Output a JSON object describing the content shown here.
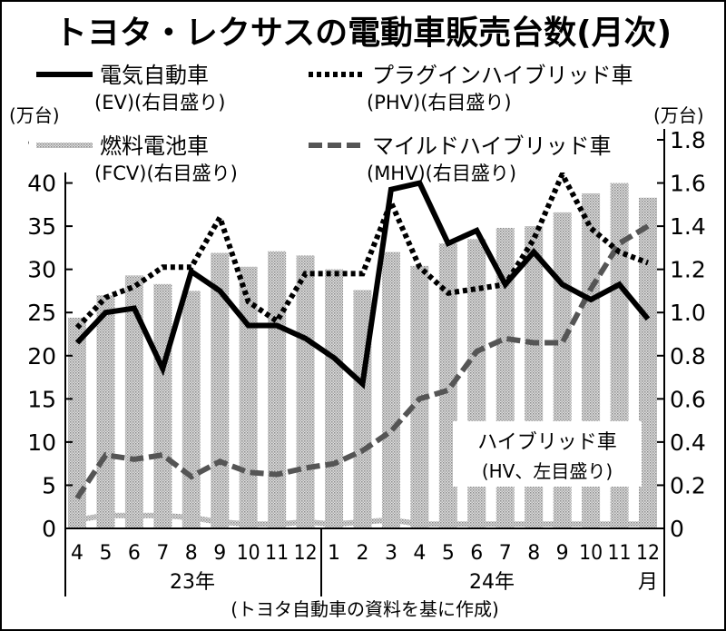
{
  "chart_data": {
    "type": "bar+line",
    "title": "トヨタ・レクサスの電動車販売台数(月次)",
    "left_unit": "(万台)",
    "right_unit": "(万台)",
    "left_ylim": [
      0,
      45
    ],
    "right_ylim": [
      0,
      1.8
    ],
    "left_ticks": [
      "0",
      "5",
      "10",
      "15",
      "20",
      "25",
      "30",
      "35",
      "40",
      "45"
    ],
    "right_ticks": [
      "0",
      "0.2",
      "0.4",
      "0.6",
      "0.8",
      "1.0",
      "1.2",
      "1.4",
      "1.6",
      "1.8"
    ],
    "categories": [
      "4",
      "5",
      "6",
      "7",
      "8",
      "9",
      "10",
      "11",
      "12",
      "1",
      "2",
      "3",
      "4",
      "5",
      "6",
      "7",
      "8",
      "9",
      "10",
      "11",
      "12"
    ],
    "years": [
      "23年",
      "24年"
    ],
    "month_suffix": "月",
    "source": "(トヨタ自動車の資料を基に作成)",
    "grid": false,
    "series": [
      {
        "name": "ハイブリッド車",
        "name2": "(HV、左目盛り)",
        "axis": "left",
        "kind": "bar",
        "color": "#bdbdbd",
        "values": [
          24.4,
          27.0,
          29.3,
          28.3,
          27.5,
          31.9,
          30.3,
          32.1,
          31.6,
          30.0,
          27.6,
          32.0,
          30.4,
          33.0,
          33.5,
          34.8,
          35.0,
          36.6,
          38.8,
          40.0,
          38.3
        ]
      },
      {
        "name": "電気自動車",
        "name2": "(EV)(右目盛り)",
        "axis": "right",
        "kind": "line",
        "style": "solid",
        "color": "#000000",
        "values": [
          0.86,
          1.0,
          1.02,
          0.74,
          1.19,
          1.1,
          0.94,
          0.94,
          0.88,
          0.79,
          0.67,
          1.57,
          1.6,
          1.32,
          1.38,
          1.13,
          1.28,
          1.13,
          1.06,
          1.13,
          0.97
        ]
      },
      {
        "name": "プラグインハイブリッド車",
        "name2": "(PHV)(右目盛り)",
        "axis": "right",
        "kind": "line",
        "style": "dotted",
        "color": "#000000",
        "values": [
          0.93,
          1.07,
          1.12,
          1.21,
          1.21,
          1.44,
          1.05,
          0.96,
          1.18,
          1.18,
          1.18,
          1.51,
          1.21,
          1.09,
          1.11,
          1.13,
          1.34,
          1.64,
          1.39,
          1.28,
          1.23
        ]
      },
      {
        "name": "燃料電池車",
        "name2": "(FCV)(右目盛り)",
        "axis": "right",
        "kind": "line",
        "style": "solid-gray",
        "color": "#a8a8a8",
        "values": [
          0.04,
          0.06,
          0.06,
          0.06,
          0.05,
          0.03,
          0.02,
          0.02,
          0.03,
          0.02,
          0.03,
          0.04,
          0.02,
          0.02,
          0.02,
          0.02,
          0.02,
          0.02,
          0.02,
          0.02,
          0.02
        ]
      },
      {
        "name": "マイルドハイブリッド車",
        "name2": "(MHV)(右目盛り)",
        "axis": "right",
        "kind": "line",
        "style": "dashed",
        "color": "#555555",
        "values": [
          0.14,
          0.34,
          0.32,
          0.34,
          0.24,
          0.31,
          0.26,
          0.25,
          0.28,
          0.3,
          0.36,
          0.45,
          0.6,
          0.64,
          0.82,
          0.88,
          0.86,
          0.86,
          1.11,
          1.32,
          1.4
        ]
      }
    ]
  }
}
